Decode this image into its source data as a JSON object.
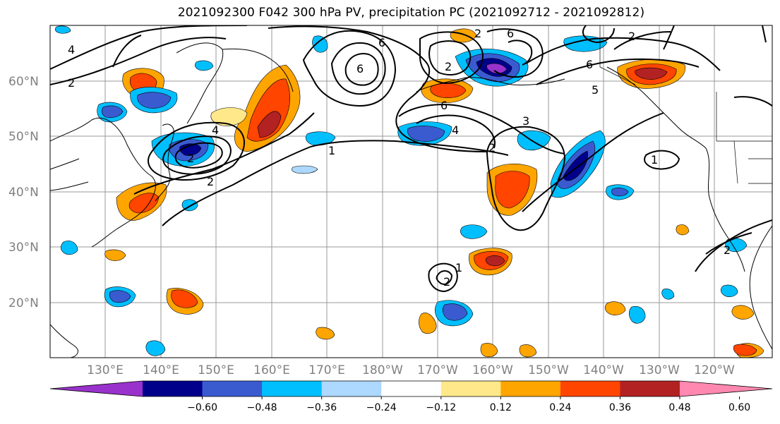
{
  "title": "2021092300 F042 300 hPa PV, precipitation PC (2021092712 - 2021092812)",
  "lat_ticks": [
    "60°N",
    "50°N",
    "40°N",
    "30°N",
    "20°N"
  ],
  "lon_ticks": [
    "130°E",
    "140°E",
    "150°E",
    "160°E",
    "170°E",
    "180°W",
    "170°W",
    "160°W",
    "150°W",
    "140°W",
    "130°W",
    "120°W"
  ],
  "colorbar": {
    "tick_labels": [
      "−0.60",
      "−0.48",
      "−0.36",
      "−0.24",
      "−0.12",
      "0.12",
      "0.24",
      "0.36",
      "0.48",
      "0.60"
    ],
    "colors": [
      "#9932CC",
      "#00008B",
      "#3A5BD0",
      "#00BFFF",
      "#ADD8FF",
      "#FFFFFF",
      "#FFE88A",
      "#FFA500",
      "#FF4500",
      "#B22222",
      "#FF88B0"
    ]
  },
  "contour_labels": [
    "4",
    "2",
    "2",
    "6",
    "6",
    "6",
    "2",
    "1",
    "2",
    "4",
    "6",
    "2",
    "4",
    "3",
    "1",
    "2",
    "2",
    "1",
    "2",
    "6",
    "5",
    "2"
  ]
}
